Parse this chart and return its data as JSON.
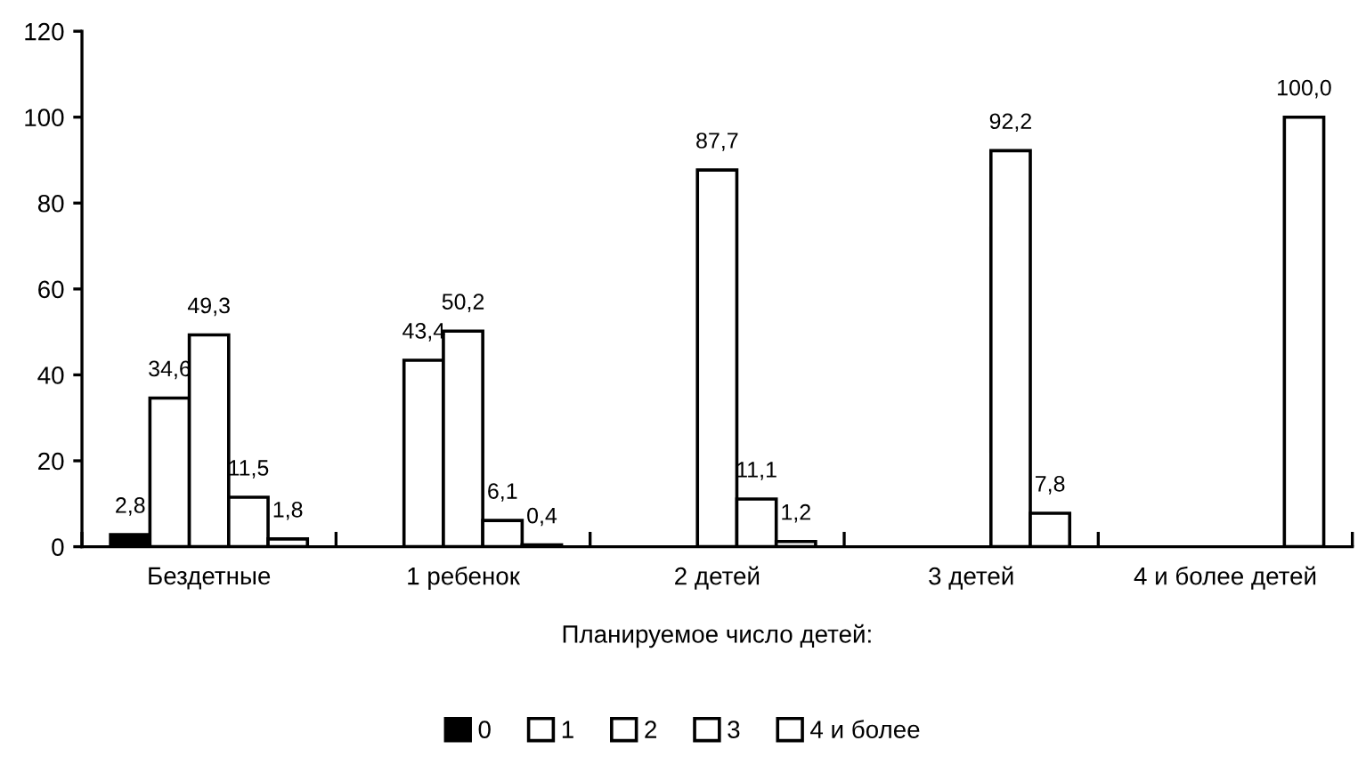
{
  "chart_data": {
    "type": "bar",
    "xlabel": "Планируемое число детей:",
    "categories": [
      "Бездетные",
      "1 ребенок",
      "2 детей",
      "3 детей",
      "4 и более детей"
    ],
    "series": [
      {
        "name": "0",
        "color": "#000000",
        "values": [
          2.8,
          null,
          null,
          null,
          null
        ],
        "value_labels": [
          "2,8",
          null,
          null,
          null,
          null
        ]
      },
      {
        "name": "1",
        "color": "#ffffff",
        "values": [
          34.6,
          43.4,
          null,
          null,
          null
        ],
        "value_labels": [
          "34,6",
          "43,4",
          null,
          null,
          null
        ]
      },
      {
        "name": "2",
        "color": "#ffffff",
        "values": [
          49.3,
          50.2,
          87.7,
          null,
          null
        ],
        "value_labels": [
          "49,3",
          "50,2",
          "87,7",
          null,
          null
        ]
      },
      {
        "name": "3",
        "color": "#ffffff",
        "values": [
          11.5,
          6.1,
          11.1,
          92.2,
          null
        ],
        "value_labels": [
          "11,5",
          "6,1",
          "11,1",
          "92,2",
          null
        ]
      },
      {
        "name": "4 и более",
        "color": "#ffffff",
        "values": [
          1.8,
          0.4,
          1.2,
          7.8,
          100.0
        ],
        "value_labels": [
          "1,8",
          "0,4",
          "1,2",
          "7,8",
          "100,0"
        ]
      }
    ],
    "ylim": [
      0,
      120
    ],
    "yticks": [
      0,
      20,
      40,
      60,
      80,
      100,
      120
    ],
    "grid": false,
    "legend": "bottom"
  }
}
